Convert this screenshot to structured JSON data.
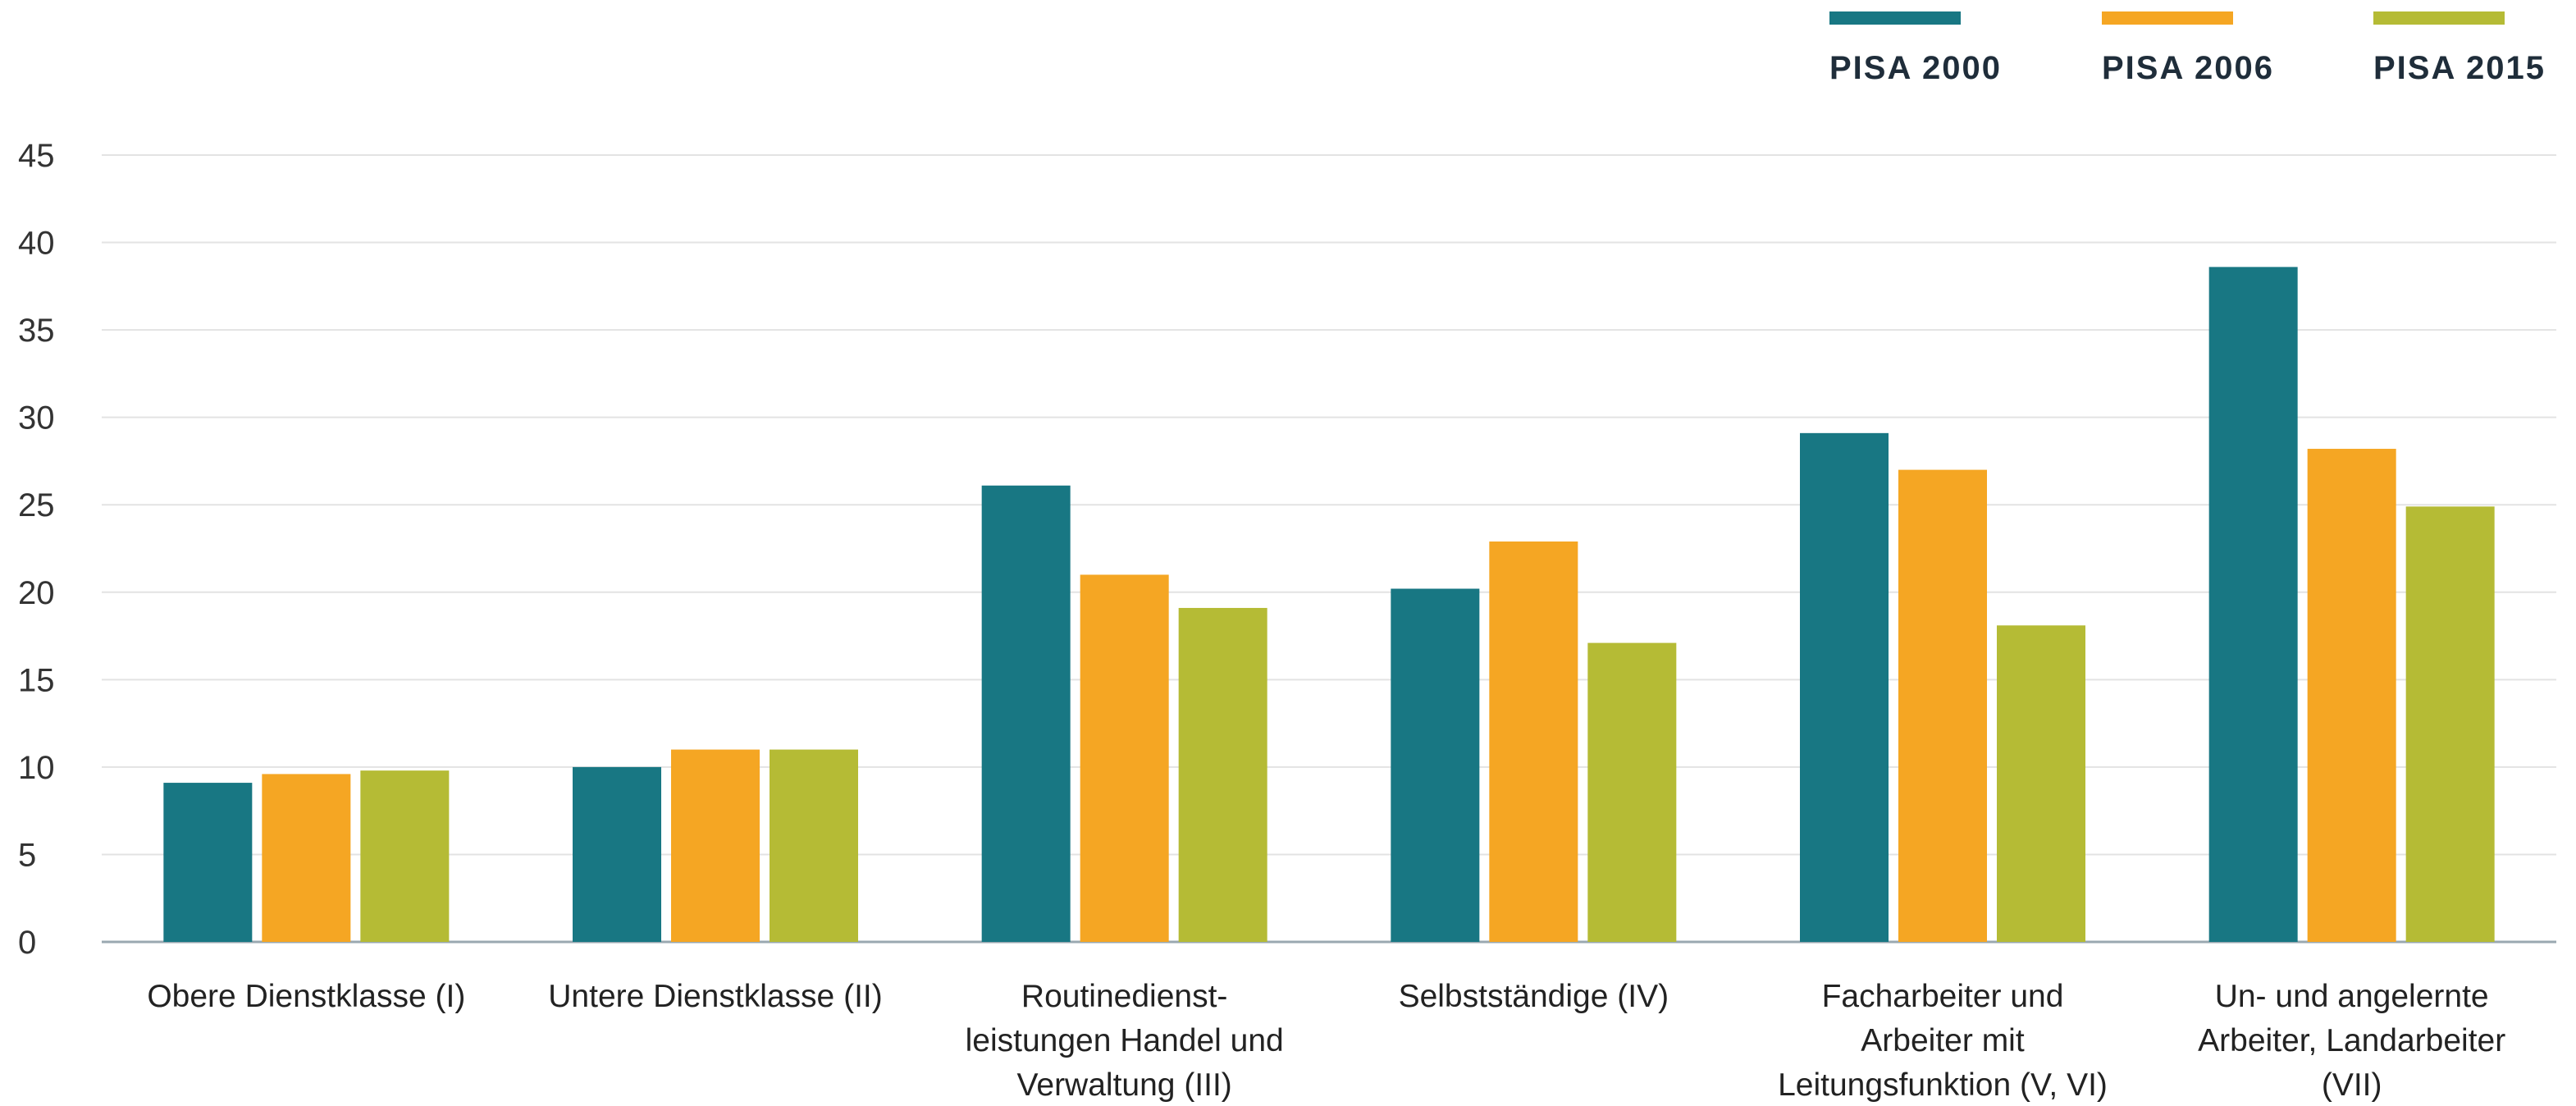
{
  "chart_data": {
    "type": "bar",
    "title": "",
    "xlabel": "",
    "ylabel": "",
    "ylim": [
      0,
      45
    ],
    "yticks": [
      0,
      5,
      10,
      15,
      20,
      25,
      30,
      35,
      40,
      45
    ],
    "grid": true,
    "legend_position": "top-right",
    "categories": [
      [
        "Obere Dienstklasse (I)"
      ],
      [
        "Untere Dienstklasse (II)"
      ],
      [
        "Routinedienst-",
        "leistungen Handel und",
        "Verwaltung (III)"
      ],
      [
        "Selbstständige (IV)"
      ],
      [
        "Facharbeiter und",
        "Arbeiter mit",
        "Leitungsfunktion (V, VI)"
      ],
      [
        "Un- und angelernte",
        "Arbeiter, Landarbeiter",
        "(VII)"
      ]
    ],
    "series": [
      {
        "name": "PISA 2000",
        "color": "#187783",
        "values": [
          9.1,
          10.0,
          26.1,
          20.2,
          29.1,
          38.6
        ]
      },
      {
        "name": "PISA 2006",
        "color": "#f5a623",
        "values": [
          9.6,
          11.0,
          21.0,
          22.9,
          27.0,
          28.2
        ]
      },
      {
        "name": "PISA 2015",
        "color": "#b5bb35",
        "values": [
          9.8,
          11.0,
          19.1,
          17.1,
          18.1,
          24.9
        ]
      }
    ]
  }
}
